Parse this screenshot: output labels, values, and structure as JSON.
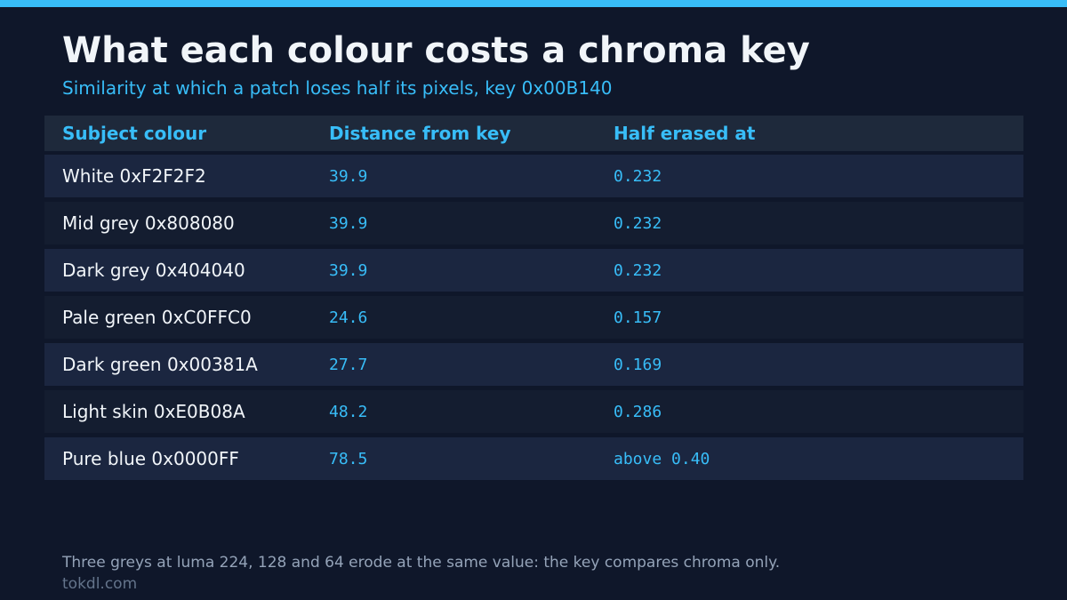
{
  "header": {
    "title": "What each colour costs a chroma key",
    "subtitle": "Similarity at which a patch loses half its pixels, key 0x00B140"
  },
  "table": {
    "columns": [
      "Subject colour",
      "Distance from key",
      "Half erased at"
    ],
    "rows": [
      [
        "White 0xF2F2F2",
        "39.9",
        "0.232"
      ],
      [
        "Mid grey 0x808080",
        "39.9",
        "0.232"
      ],
      [
        "Dark grey 0x404040",
        "39.9",
        "0.232"
      ],
      [
        "Pale green 0xC0FFC0",
        "24.6",
        "0.157"
      ],
      [
        "Dark green 0x00381A",
        "27.7",
        "0.169"
      ],
      [
        "Light skin 0xE0B08A",
        "48.2",
        "0.286"
      ],
      [
        "Pure blue 0x0000FF",
        "78.5",
        "above 0.40"
      ]
    ]
  },
  "footer": {
    "note": "Three greys at luma 224, 128 and 64 erode at the same value: the key compares chroma only.",
    "source": "tokdl.com"
  }
}
